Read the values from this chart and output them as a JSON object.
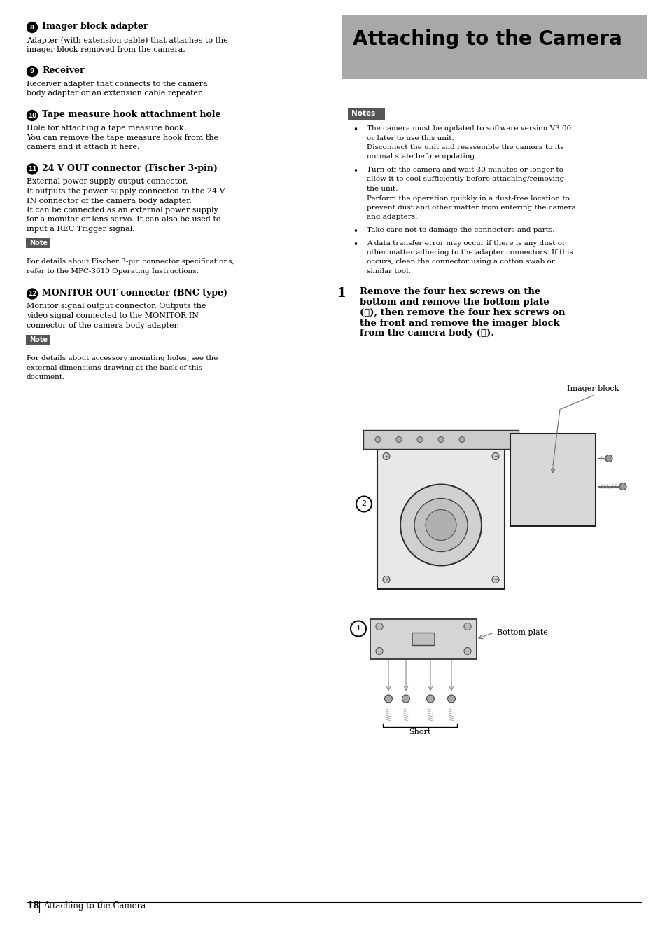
{
  "page_bg": "#ffffff",
  "title": "Attaching to the Camera",
  "title_bg": "#a8a8a8",
  "sections_left": [
    {
      "num": "8",
      "heading": "Imager block adapter",
      "body": "Adapter (with extension cable) that attaches to the\nimager block removed from the camera."
    },
    {
      "num": "9",
      "heading": "Receiver",
      "body": "Receiver adapter that connects to the camera\nbody adapter or an extension cable repeater."
    },
    {
      "num": "10",
      "heading": "Tape measure hook attachment hole",
      "body": "Hole for attaching a tape measure hook.\nYou can remove the tape measure hook from the\ncamera and it attach it here."
    },
    {
      "num": "11",
      "heading": "24 V OUT connector (Fischer 3-pin)",
      "body": "External power supply output connector.\nIt outputs the power supply connected to the 24 V\nIN connector of the camera body adapter.\nIt can be connected as an external power supply\nfor a monitor or lens servo. It can also be used to\ninput a REC Trigger signal.",
      "note": "For details about Fischer 3-pin connector specifications,\nrefer to the MPC-3610 Operating Instructions."
    },
    {
      "num": "12",
      "heading": "MONITOR OUT connector (BNC type)",
      "body": "Monitor signal output connector. Outputs the\nvideo signal connected to the MONITOR IN\nconnector of the camera body adapter.",
      "note": "For details about accessory mounting holes, see the\nexternal dimensions drawing at the back of this\ndocument."
    }
  ],
  "notes_right": [
    "The camera must be updated to software version V3.00\nor later to use this unit.\nDisconnect the unit and reassemble the camera to its\nnormal state before updating.",
    "Turn off the camera and wait 30 minutes or longer to\nallow it to cool sufficiently before attaching/removing\nthe unit.\nPerform the operation quickly in a dust-free location to\nprevent dust and other matter from entering the camera\nand adapters.",
    "Take care not to damage the connectors and parts.",
    "A data transfer error may occur if there is any dust or\nother matter adhering to the adapter connectors. If this\noccurs, clean the connector using a cotton swab or\nsimilar tool."
  ],
  "step1_line1": "Remove the four hex screws on the",
  "step1_line2": "bottom and remove the bottom plate",
  "step1_line3": "(①), then remove the four hex screws on",
  "step1_line4": "the front and remove the imager block",
  "step1_line5": "from the camera body (②).",
  "footer_text": "Attaching to the Camera",
  "page_num": "18",
  "label_imager_block": "Imager block",
  "label_bottom_plate": "Bottom plate",
  "label_short": "Short"
}
